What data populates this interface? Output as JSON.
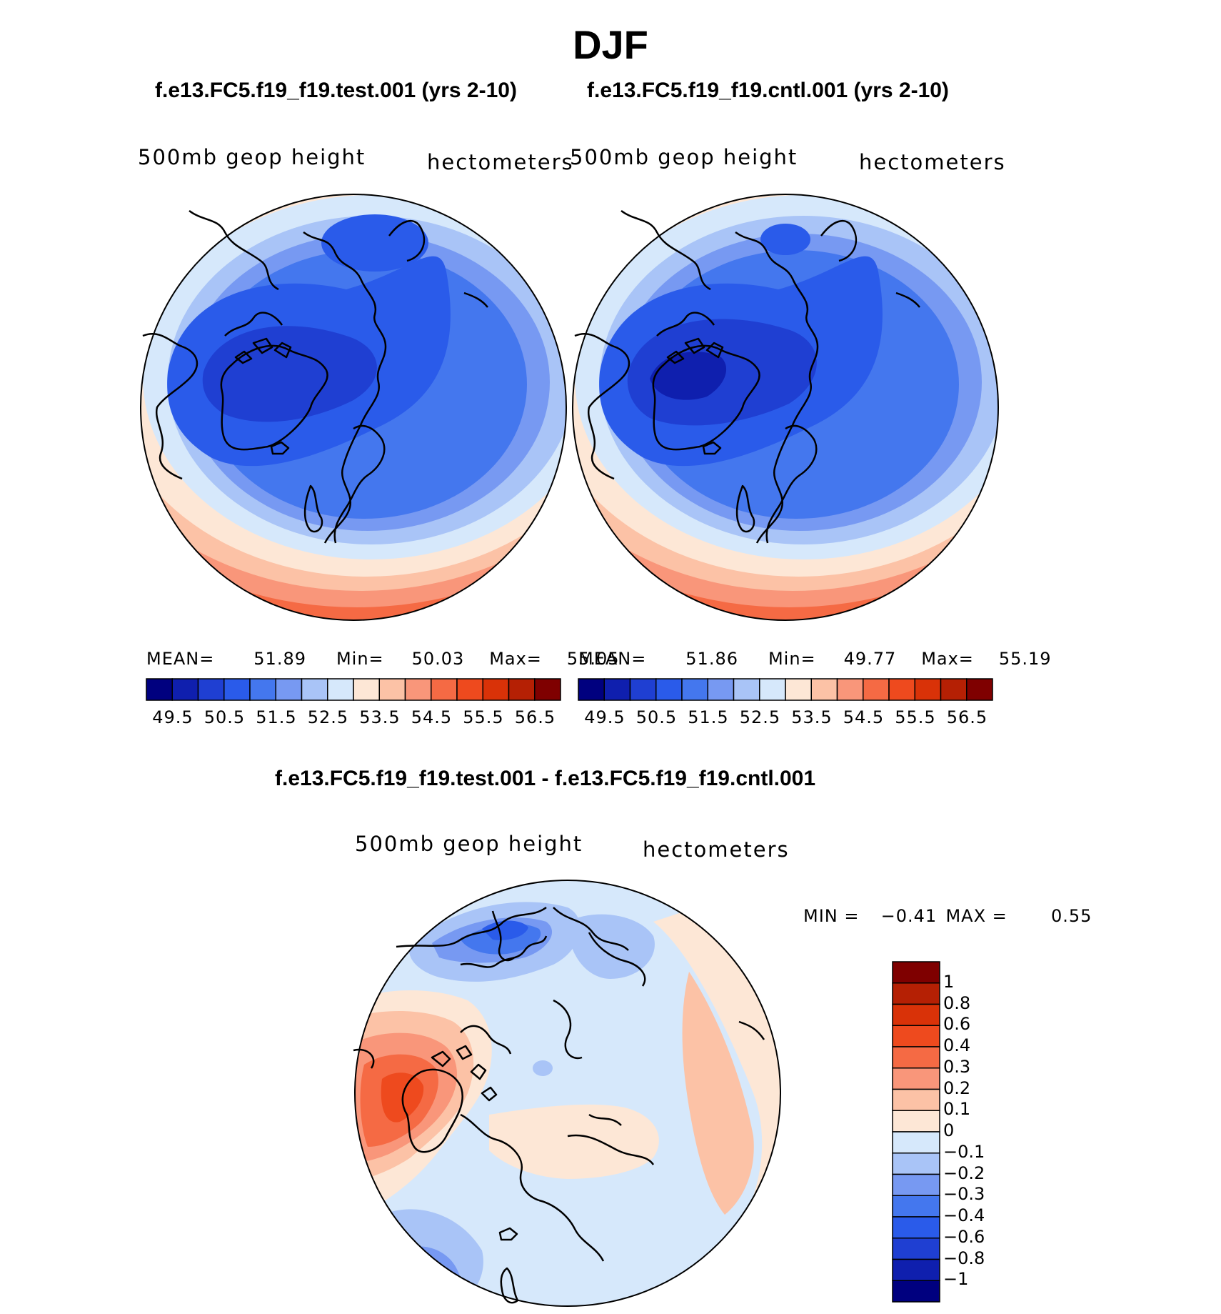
{
  "figure": {
    "season": "DJF",
    "variable_label": "500mb geop height",
    "units_label": "hectometers"
  },
  "panels": {
    "test": {
      "title": "f.e13.FC5.f19_f19.test.001 (yrs 2-10)",
      "stats": {
        "mean_label": "MEAN=",
        "mean": "51.89",
        "min_label": "Min=",
        "min": "50.03",
        "max_label": "Max=",
        "max": "55.05"
      }
    },
    "cntl": {
      "title": "f.e13.FC5.f19_f19.cntl.001 (yrs 2-10)",
      "stats": {
        "mean_label": "MEAN=",
        "mean": "51.86",
        "min_label": "Min=",
        "min": "49.77",
        "max_label": "Max=",
        "max": "55.19"
      }
    },
    "diff": {
      "title": "f.e13.FC5.f19_f19.test.001 - f.e13.FC5.f19_f19.cntl.001",
      "stats": {
        "min_label": "MIN =",
        "min": "−0.41",
        "max_label": "MAX =",
        "max": "0.55"
      }
    }
  },
  "colorbars": {
    "abs": {
      "colors": [
        "#00007f",
        "#0f1fae",
        "#1f3fd2",
        "#2a5bea",
        "#4477ee",
        "#7799f2",
        "#a9c4f7",
        "#d6e8fb",
        "#fde7d6",
        "#fcc2a6",
        "#f9967a",
        "#f56a44",
        "#ee4a1e",
        "#d93208",
        "#b52004",
        "#7f0000"
      ],
      "tick_labels": [
        "49.5",
        "50.5",
        "51.5",
        "52.5",
        "53.5",
        "54.5",
        "55.5",
        "56.5"
      ]
    },
    "diff": {
      "colors": [
        "#7f0000",
        "#b52004",
        "#d93208",
        "#ee4a1e",
        "#f56a44",
        "#f9967a",
        "#fcc2a6",
        "#fde7d6",
        "#d6e8fb",
        "#a9c4f7",
        "#7799f2",
        "#4477ee",
        "#2a5bea",
        "#1f3fd2",
        "#0f1fae",
        "#00007f"
      ],
      "tick_labels": [
        "1",
        "0.8",
        "0.6",
        "0.4",
        "0.3",
        "0.2",
        "0.1",
        "0",
        "−0.1",
        "−0.2",
        "−0.3",
        "−0.4",
        "−0.6",
        "−0.8",
        "−1"
      ]
    }
  },
  "chart_data": [
    {
      "type": "heatmap",
      "projection": "north-polar-stereographic",
      "title": "f.e13.FC5.f19_f19.test.001 (yrs 2-10)",
      "field": "500mb geop height",
      "units": "hectometers",
      "mean": 51.89,
      "min": 50.03,
      "max": 55.05,
      "levels": [
        49.5,
        50,
        50.5,
        51,
        51.5,
        52,
        52.5,
        53,
        53.5,
        54,
        54.5,
        55,
        55.5,
        56,
        56.5
      ]
    },
    {
      "type": "heatmap",
      "projection": "north-polar-stereographic",
      "title": "f.e13.FC5.f19_f19.cntl.001 (yrs 2-10)",
      "field": "500mb geop height",
      "units": "hectometers",
      "mean": 51.86,
      "min": 49.77,
      "max": 55.19,
      "levels": [
        49.5,
        50,
        50.5,
        51,
        51.5,
        52,
        52.5,
        53,
        53.5,
        54,
        54.5,
        55,
        55.5,
        56,
        56.5
      ]
    },
    {
      "type": "heatmap",
      "projection": "north-polar-stereographic",
      "title": "f.e13.FC5.f19_f19.test.001 - f.e13.FC5.f19_f19.cntl.001",
      "field": "500mb geop height",
      "units": "hectometers",
      "min": -0.41,
      "max": 0.55,
      "levels": [
        -1,
        -0.8,
        -0.6,
        -0.4,
        -0.3,
        -0.2,
        -0.1,
        0,
        0.1,
        0.2,
        0.3,
        0.4,
        0.6,
        0.8,
        1
      ]
    }
  ]
}
